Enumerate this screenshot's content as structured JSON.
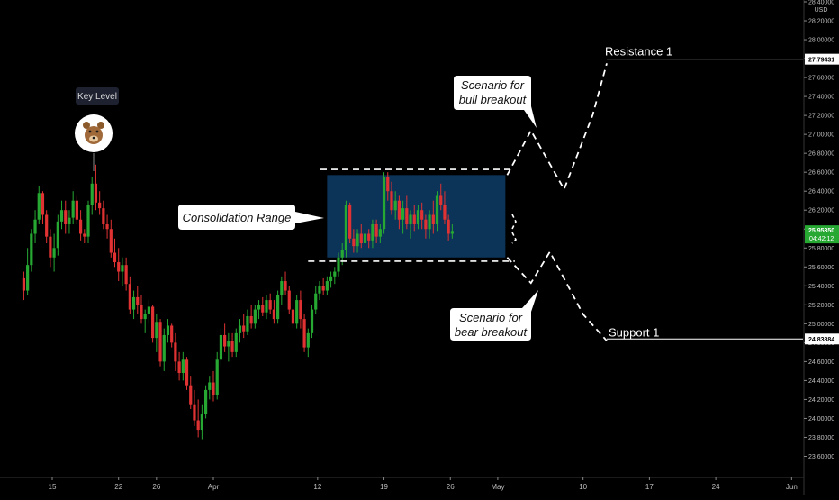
{
  "chart_data": {
    "type": "candlestick",
    "currency": "USD",
    "price_axis": {
      "range": [
        23.5,
        28.4
      ],
      "ticks": [
        "28.40000",
        "28.20000",
        "28.00000",
        "27.80000",
        "27.60000",
        "27.40000",
        "27.20000",
        "27.00000",
        "26.80000",
        "26.60000",
        "26.40000",
        "26.20000",
        "26.00000",
        "25.80000",
        "25.60000",
        "25.40000",
        "25.20000",
        "25.00000",
        "24.80000",
        "24.60000",
        "24.40000",
        "24.20000",
        "24.00000",
        "23.80000",
        "23.60000"
      ],
      "current_price": "25.95350",
      "countdown": "04:42:12",
      "resistance_value": "27.79431",
      "support_value": "24.83884"
    },
    "time_axis": {
      "labels": [
        {
          "text": "15",
          "day": 0
        },
        {
          "text": "22",
          "day": 7
        },
        {
          "text": "26",
          "day": 11
        },
        {
          "text": "Apr",
          "day": 17
        },
        {
          "text": "12",
          "day": 28
        },
        {
          "text": "19",
          "day": 35
        },
        {
          "text": "26",
          "day": 42
        },
        {
          "text": "May",
          "day": 47
        },
        {
          "text": "10",
          "day": 56
        },
        {
          "text": "17",
          "day": 63
        },
        {
          "text": "24",
          "day": 70
        },
        {
          "text": "Jun",
          "day": 78
        }
      ]
    },
    "annotations": {
      "key_level": "Key Level",
      "consolidation": "Consolidation Range",
      "bull_line1": "Scenario for",
      "bull_line2": "bull breakout",
      "bear_line1": "Scenario for",
      "bear_line2": "bear breakout",
      "resistance": "Resistance 1",
      "support": "Support 1"
    },
    "range_box": {
      "top": 26.57,
      "bottom": 25.7
    },
    "level_lines": {
      "upper": 26.63,
      "lower": 25.66
    },
    "paths": {
      "bull": [
        [
          48.0,
          26.57
        ],
        [
          50.5,
          27.04
        ],
        [
          54.0,
          26.42
        ],
        [
          57.0,
          27.2
        ],
        [
          58.5,
          27.75
        ]
      ],
      "bear": [
        [
          48.0,
          25.7
        ],
        [
          50.5,
          25.43
        ],
        [
          52.5,
          25.76
        ],
        [
          56.0,
          25.1
        ],
        [
          58.5,
          24.82
        ]
      ]
    },
    "candles": [
      [
        -3.0,
        25.48,
        25.55,
        25.25,
        25.35
      ],
      [
        -2.6,
        25.35,
        25.8,
        25.3,
        25.62
      ],
      [
        -2.2,
        25.62,
        26.0,
        25.55,
        25.95
      ],
      [
        -1.8,
        25.95,
        26.2,
        25.85,
        26.1
      ],
      [
        -1.4,
        26.1,
        26.45,
        26.05,
        26.38
      ],
      [
        -1.0,
        26.38,
        26.4,
        26.05,
        26.15
      ],
      [
        -0.6,
        26.15,
        26.2,
        25.85,
        25.92
      ],
      [
        -0.2,
        25.92,
        26.0,
        25.6,
        25.7
      ],
      [
        0.2,
        25.7,
        25.95,
        25.55,
        25.8
      ],
      [
        0.6,
        25.8,
        26.15,
        25.72,
        26.08
      ],
      [
        1.0,
        26.08,
        26.3,
        26.0,
        26.2
      ],
      [
        1.4,
        26.2,
        26.3,
        25.95,
        26.05
      ],
      [
        1.8,
        26.05,
        26.2,
        25.95,
        26.12
      ],
      [
        2.2,
        26.12,
        26.4,
        26.05,
        26.3
      ],
      [
        2.6,
        26.3,
        26.35,
        26.05,
        26.1
      ],
      [
        3.0,
        26.1,
        26.2,
        25.88,
        25.95
      ],
      [
        3.4,
        25.95,
        26.0,
        25.85,
        25.92
      ],
      [
        3.8,
        25.92,
        26.3,
        25.85,
        26.25
      ],
      [
        4.2,
        26.25,
        26.55,
        26.15,
        26.48
      ],
      [
        4.6,
        26.48,
        26.68,
        26.2,
        26.28
      ],
      [
        5.0,
        26.28,
        26.4,
        26.15,
        26.22
      ],
      [
        5.4,
        26.22,
        26.3,
        26.0,
        26.05
      ],
      [
        5.8,
        26.05,
        26.15,
        25.9,
        26.0
      ],
      [
        6.2,
        26.0,
        26.1,
        25.7,
        25.75
      ],
      [
        6.6,
        25.75,
        25.9,
        25.6,
        25.65
      ],
      [
        7.0,
        25.65,
        25.8,
        25.45,
        25.55
      ],
      [
        7.4,
        25.55,
        25.7,
        25.4,
        25.62
      ],
      [
        7.8,
        25.62,
        25.7,
        25.35,
        25.42
      ],
      [
        8.2,
        25.42,
        25.5,
        25.1,
        25.15
      ],
      [
        8.6,
        25.15,
        25.35,
        25.05,
        25.28
      ],
      [
        9.0,
        25.28,
        25.4,
        25.1,
        25.2
      ],
      [
        9.4,
        25.2,
        25.3,
        25.0,
        25.05
      ],
      [
        9.8,
        25.05,
        25.15,
        24.9,
        25.1
      ],
      [
        10.2,
        25.1,
        25.25,
        25.0,
        25.18
      ],
      [
        10.6,
        25.18,
        25.2,
        24.8,
        24.85
      ],
      [
        11.0,
        24.85,
        25.1,
        24.7,
        25.02
      ],
      [
        11.4,
        25.02,
        25.05,
        24.55,
        24.6
      ],
      [
        11.8,
        24.6,
        24.95,
        24.5,
        24.88
      ],
      [
        12.2,
        24.88,
        25.05,
        24.8,
        24.98
      ],
      [
        12.6,
        24.98,
        25.0,
        24.75,
        24.8
      ],
      [
        13.0,
        24.8,
        24.9,
        24.5,
        24.6
      ],
      [
        13.4,
        24.6,
        24.7,
        24.4,
        24.48
      ],
      [
        13.8,
        24.48,
        24.7,
        24.4,
        24.62
      ],
      [
        14.2,
        24.62,
        24.65,
        24.3,
        24.35
      ],
      [
        14.6,
        24.35,
        24.45,
        24.1,
        24.15
      ],
      [
        15.0,
        24.15,
        24.3,
        23.92,
        23.98
      ],
      [
        15.4,
        23.98,
        24.2,
        23.8,
        23.88
      ],
      [
        15.8,
        23.88,
        24.15,
        23.78,
        24.05
      ],
      [
        16.2,
        24.05,
        24.35,
        24.0,
        24.3
      ],
      [
        16.6,
        24.3,
        24.45,
        24.2,
        24.38
      ],
      [
        17.0,
        24.38,
        24.5,
        24.18,
        24.25
      ],
      [
        17.4,
        24.25,
        24.7,
        24.2,
        24.62
      ],
      [
        17.8,
        24.62,
        24.95,
        24.55,
        24.88
      ],
      [
        18.2,
        24.88,
        25.0,
        24.7,
        24.76
      ],
      [
        18.6,
        24.76,
        24.9,
        24.6,
        24.82
      ],
      [
        19.0,
        24.82,
        24.9,
        24.65,
        24.7
      ],
      [
        19.4,
        24.7,
        24.95,
        24.65,
        24.9
      ],
      [
        19.8,
        24.9,
        25.05,
        24.8,
        24.98
      ],
      [
        20.2,
        24.98,
        25.1,
        24.85,
        24.92
      ],
      [
        20.6,
        24.92,
        25.15,
        24.88,
        25.08
      ],
      [
        21.0,
        25.08,
        25.2,
        24.95,
        25.0
      ],
      [
        21.4,
        25.0,
        25.2,
        24.95,
        25.15
      ],
      [
        21.8,
        25.15,
        25.25,
        25.05,
        25.2
      ],
      [
        22.2,
        25.2,
        25.28,
        25.08,
        25.12
      ],
      [
        22.6,
        25.12,
        25.3,
        25.05,
        25.25
      ],
      [
        23.0,
        25.25,
        25.32,
        25.1,
        25.15
      ],
      [
        23.4,
        25.15,
        25.25,
        25.0,
        25.05
      ],
      [
        23.8,
        25.05,
        25.35,
        25.0,
        25.3
      ],
      [
        24.2,
        25.3,
        25.5,
        25.2,
        25.45
      ],
      [
        24.6,
        25.45,
        25.55,
        25.3,
        25.35
      ],
      [
        25.0,
        25.35,
        25.4,
        25.1,
        25.15
      ],
      [
        25.4,
        25.15,
        25.25,
        24.95,
        25.0
      ],
      [
        25.8,
        25.0,
        25.3,
        24.95,
        25.25
      ],
      [
        26.2,
        25.25,
        25.35,
        24.95,
        25.05
      ],
      [
        26.6,
        25.05,
        25.1,
        24.7,
        24.75
      ],
      [
        27.0,
        24.75,
        24.95,
        24.65,
        24.9
      ],
      [
        27.4,
        24.9,
        25.2,
        24.85,
        25.15
      ],
      [
        27.8,
        25.15,
        25.4,
        25.1,
        25.32
      ],
      [
        28.2,
        25.32,
        25.45,
        25.25,
        25.4
      ],
      [
        28.6,
        25.4,
        25.48,
        25.3,
        25.35
      ],
      [
        29.0,
        25.35,
        25.5,
        25.3,
        25.45
      ],
      [
        29.4,
        25.45,
        25.55,
        25.38,
        25.5
      ],
      [
        29.8,
        25.5,
        25.6,
        25.42,
        25.55
      ],
      [
        30.2,
        25.55,
        25.75,
        25.5,
        25.7
      ],
      [
        30.6,
        25.7,
        25.85,
        25.62,
        25.78
      ],
      [
        31.0,
        25.78,
        26.3,
        25.7,
        26.25
      ],
      [
        31.4,
        26.25,
        26.28,
        25.85,
        25.9
      ],
      [
        31.8,
        25.9,
        26.0,
        25.75,
        25.82
      ],
      [
        32.2,
        25.82,
        26.0,
        25.75,
        25.95
      ],
      [
        32.6,
        25.95,
        26.05,
        25.8,
        25.85
      ],
      [
        33.0,
        25.85,
        26.0,
        25.75,
        25.95
      ],
      [
        33.4,
        25.95,
        26.0,
        25.8,
        25.88
      ],
      [
        33.8,
        25.88,
        26.1,
        25.8,
        26.05
      ],
      [
        34.2,
        26.05,
        26.1,
        25.85,
        25.92
      ],
      [
        34.6,
        25.92,
        26.05,
        25.85,
        26.0
      ],
      [
        35.0,
        26.0,
        26.6,
        25.95,
        26.55
      ],
      [
        35.4,
        26.55,
        26.6,
        26.3,
        26.4
      ],
      [
        35.8,
        26.4,
        26.5,
        26.15,
        26.2
      ],
      [
        36.2,
        26.2,
        26.4,
        26.1,
        26.3
      ],
      [
        36.6,
        26.3,
        26.35,
        26.0,
        26.1
      ],
      [
        37.0,
        26.1,
        26.3,
        25.95,
        26.22
      ],
      [
        37.4,
        26.22,
        26.35,
        26.0,
        26.05
      ],
      [
        37.8,
        26.05,
        26.2,
        25.9,
        26.15
      ],
      [
        38.2,
        26.15,
        26.25,
        25.98,
        26.05
      ],
      [
        38.6,
        26.05,
        26.25,
        26.0,
        26.2
      ],
      [
        39.0,
        26.2,
        26.28,
        26.0,
        26.1
      ],
      [
        39.4,
        26.1,
        26.15,
        25.9,
        26.0
      ],
      [
        39.8,
        26.0,
        26.2,
        25.9,
        26.15
      ],
      [
        40.2,
        26.15,
        26.3,
        25.95,
        26.05
      ],
      [
        40.6,
        26.05,
        26.4,
        25.98,
        26.35
      ],
      [
        41.0,
        26.35,
        26.48,
        26.2,
        26.25
      ],
      [
        41.4,
        26.25,
        26.4,
        26.05,
        26.1
      ],
      [
        41.8,
        26.1,
        26.15,
        25.88,
        25.95
      ],
      [
        42.2,
        25.95,
        26.05,
        25.9,
        25.98
      ]
    ]
  }
}
